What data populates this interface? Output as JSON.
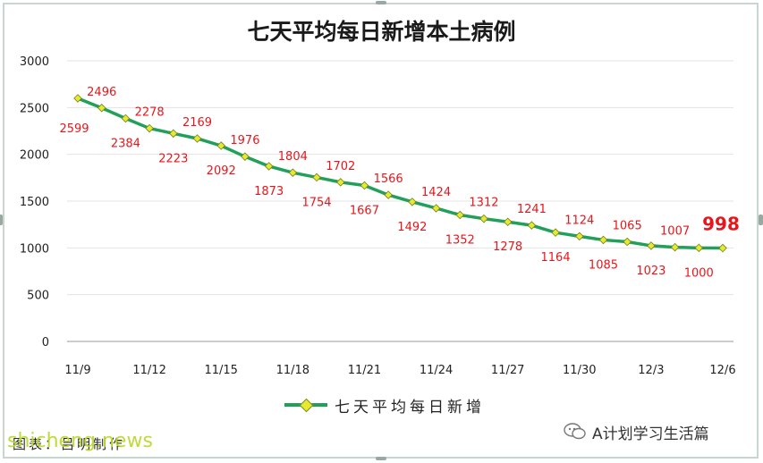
{
  "chart_data": {
    "type": "line",
    "title": "七天平均每日新增本土病例",
    "x": [
      "11/9",
      "11/10",
      "11/11",
      "11/12",
      "11/13",
      "11/14",
      "11/15",
      "11/16",
      "11/17",
      "11/18",
      "11/19",
      "11/20",
      "11/21",
      "11/22",
      "11/23",
      "11/24",
      "11/25",
      "11/26",
      "11/27",
      "11/28",
      "11/29",
      "11/30",
      "12/1",
      "12/2",
      "12/3",
      "12/4",
      "12/5",
      "12/6"
    ],
    "x_tick_labels": [
      "11/9",
      "11/12",
      "11/15",
      "11/18",
      "11/21",
      "11/24",
      "11/27",
      "11/30",
      "12/3",
      "12/6"
    ],
    "y_tick_labels": [
      "0",
      "500",
      "1000",
      "1500",
      "2000",
      "2500",
      "3000"
    ],
    "ylim": [
      0,
      3000
    ],
    "grid": true,
    "legend_position": "bottom",
    "series": [
      {
        "name": "七天平均每日新增",
        "color": "#22a05a",
        "marker_color": "#e6ea2f",
        "values": [
          2599,
          2496,
          2384,
          2278,
          2223,
          2169,
          2092,
          1976,
          1873,
          1804,
          1754,
          1702,
          1667,
          1566,
          1492,
          1424,
          1352,
          1312,
          1278,
          1241,
          1164,
          1124,
          1085,
          1065,
          1023,
          1007,
          1000,
          998
        ]
      }
    ],
    "data_labels": [
      {
        "index": 0,
        "text": "2599",
        "side": "below"
      },
      {
        "index": 1,
        "text": "2496",
        "side": "above"
      },
      {
        "index": 2,
        "text": "2384",
        "side": "below"
      },
      {
        "index": 3,
        "text": "2278",
        "side": "above"
      },
      {
        "index": 4,
        "text": "2223",
        "side": "below"
      },
      {
        "index": 5,
        "text": "2169",
        "side": "above"
      },
      {
        "index": 6,
        "text": "2092",
        "side": "below"
      },
      {
        "index": 7,
        "text": "1976",
        "side": "above"
      },
      {
        "index": 8,
        "text": "1873",
        "side": "below"
      },
      {
        "index": 9,
        "text": "1804",
        "side": "above"
      },
      {
        "index": 10,
        "text": "1754",
        "side": "below"
      },
      {
        "index": 11,
        "text": "1702",
        "side": "above"
      },
      {
        "index": 12,
        "text": "1667",
        "side": "below"
      },
      {
        "index": 13,
        "text": "1566",
        "side": "above"
      },
      {
        "index": 14,
        "text": "1492",
        "side": "below"
      },
      {
        "index": 15,
        "text": "1424",
        "side": "above"
      },
      {
        "index": 16,
        "text": "1352",
        "side": "below"
      },
      {
        "index": 17,
        "text": "1312",
        "side": "above"
      },
      {
        "index": 18,
        "text": "1278",
        "side": "below"
      },
      {
        "index": 19,
        "text": "1241",
        "side": "above"
      },
      {
        "index": 20,
        "text": "1164",
        "side": "below"
      },
      {
        "index": 21,
        "text": "1124",
        "side": "above"
      },
      {
        "index": 22,
        "text": "1085",
        "side": "below"
      },
      {
        "index": 23,
        "text": "1065",
        "side": "above"
      },
      {
        "index": 24,
        "text": "1023",
        "side": "below"
      },
      {
        "index": 25,
        "text": "1007",
        "side": "above"
      },
      {
        "index": 26,
        "text": "1000",
        "side": "below"
      },
      {
        "index": 27,
        "text": "998",
        "side": "above",
        "emphasis": true
      }
    ],
    "label_color": "#e8161b"
  },
  "legend": {
    "label": "七天平均每日新增"
  },
  "footer": {
    "source": "图表：吕明制作"
  },
  "watermarks": {
    "site": "shicheng.news",
    "account": "A计划学习生活篇"
  },
  "icons": {
    "account": "wechat-bubble-icon"
  }
}
